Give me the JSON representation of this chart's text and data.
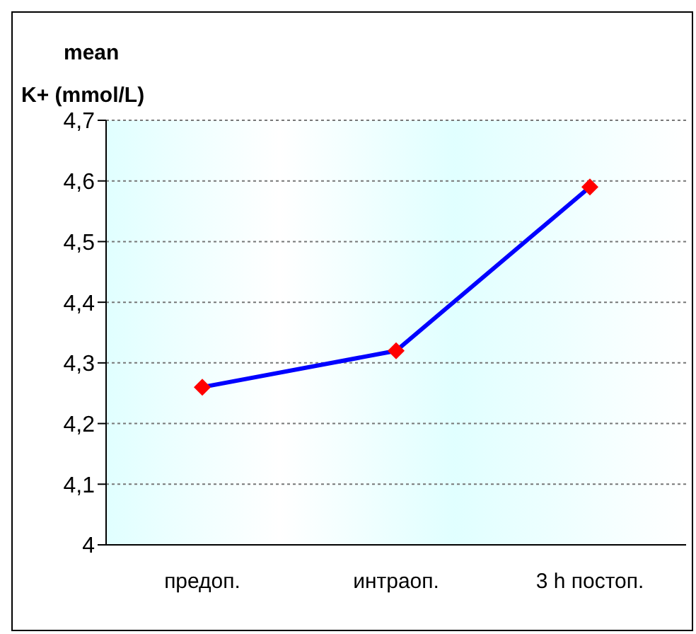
{
  "chart_data": {
    "type": "line",
    "ylabel": "mean K+ (mmol/L)",
    "categories": [
      "предоп.",
      "интраоп.",
      "3 h постоп."
    ],
    "series": [
      {
        "color": "#0000ff",
        "colors": [
          "#ff0000",
          "#ff0000",
          "#ff0000"
        ],
        "values": [
          4.26,
          4.32,
          4.59
        ]
      }
    ],
    "ylim": [
      4,
      4.7
    ],
    "yticks": [
      {
        "value": 4,
        "label": "4"
      },
      {
        "value": 4.1,
        "label": "4,1"
      },
      {
        "value": 4.2,
        "label": "4,2"
      },
      {
        "value": 4.3,
        "label": "4,3"
      },
      {
        "value": 4.4,
        "label": "4,4"
      },
      {
        "value": 4.5,
        "label": "4,5"
      },
      {
        "value": 4.6,
        "label": "4,6"
      },
      {
        "value": 4.7,
        "label": "4,7"
      }
    ],
    "grid": "y",
    "marker": "diamond",
    "line_style": "solid",
    "legend": false
  }
}
